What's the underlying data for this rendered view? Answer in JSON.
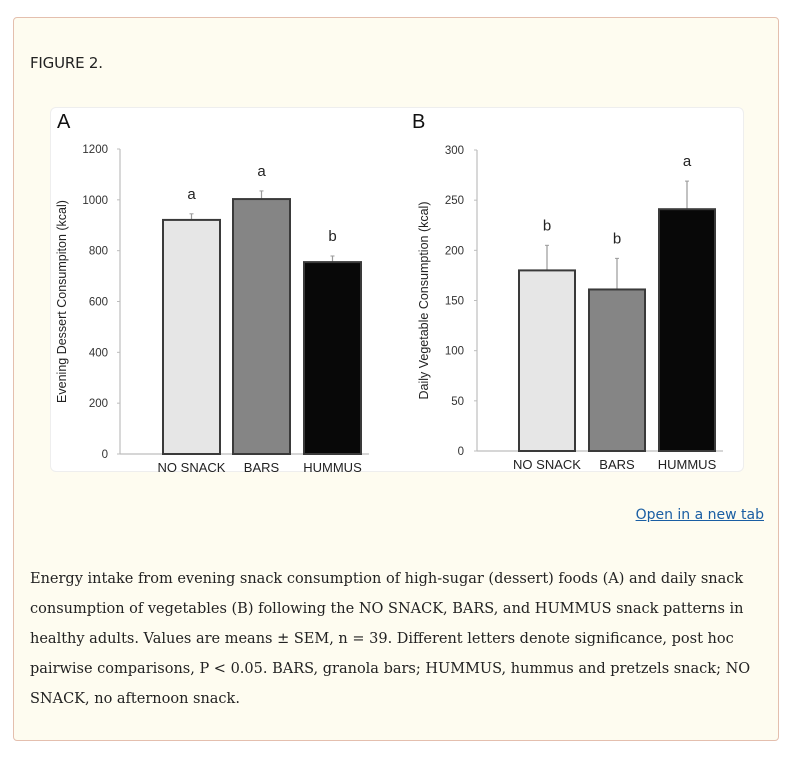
{
  "figure": {
    "title": "FIGURE 2.",
    "open_link": "Open in a new tab",
    "caption": "Energy intake from evening snack consumption of high-sugar (dessert) foods (A) and daily snack consumption of vegetables (B) following the NO SNACK, BARS, and HUMMUS snack patterns in healthy adults. Values are means  ±  SEM, n  =  39. Different letters denote significance, post hoc pairwise comparisons, P  <  0.05. BARS, granola bars; HUMMUS, hummus and pretzels snack; NO SNACK, no afternoon snack."
  },
  "colors": {
    "no_snack": "#e6e6e6",
    "bars": "#858585",
    "hummus": "#080808",
    "outline": "#3a3a3a",
    "axis": "#bdbdbd"
  },
  "chart_data": [
    {
      "type": "bar",
      "panel_label": "A",
      "title": "",
      "xlabel": "",
      "ylabel": "Evening Dessert Consumpiton (kcal)",
      "categories": [
        "NO SNACK",
        "BARS",
        "HUMMUS"
      ],
      "values": [
        921,
        1003,
        755
      ],
      "error_upper": [
        945,
        1035,
        779
      ],
      "significance_letters": [
        "a",
        "a",
        "b"
      ],
      "ylim": [
        0,
        1200
      ],
      "yticks": [
        0,
        200,
        400,
        600,
        800,
        1000,
        1200
      ],
      "grid": false,
      "legend": "none"
    },
    {
      "type": "bar",
      "panel_label": "B",
      "title": "",
      "xlabel": "",
      "ylabel": "Daily Vegetable Consumption (kcal)",
      "categories": [
        "NO SNACK",
        "BARS",
        "HUMMUS"
      ],
      "values": [
        180,
        161,
        241
      ],
      "error_upper": [
        205,
        192,
        269
      ],
      "significance_letters": [
        "b",
        "b",
        "a"
      ],
      "ylim": [
        0,
        300
      ],
      "yticks": [
        0,
        50,
        100,
        150,
        200,
        250,
        300
      ],
      "grid": false,
      "legend": "none"
    }
  ]
}
